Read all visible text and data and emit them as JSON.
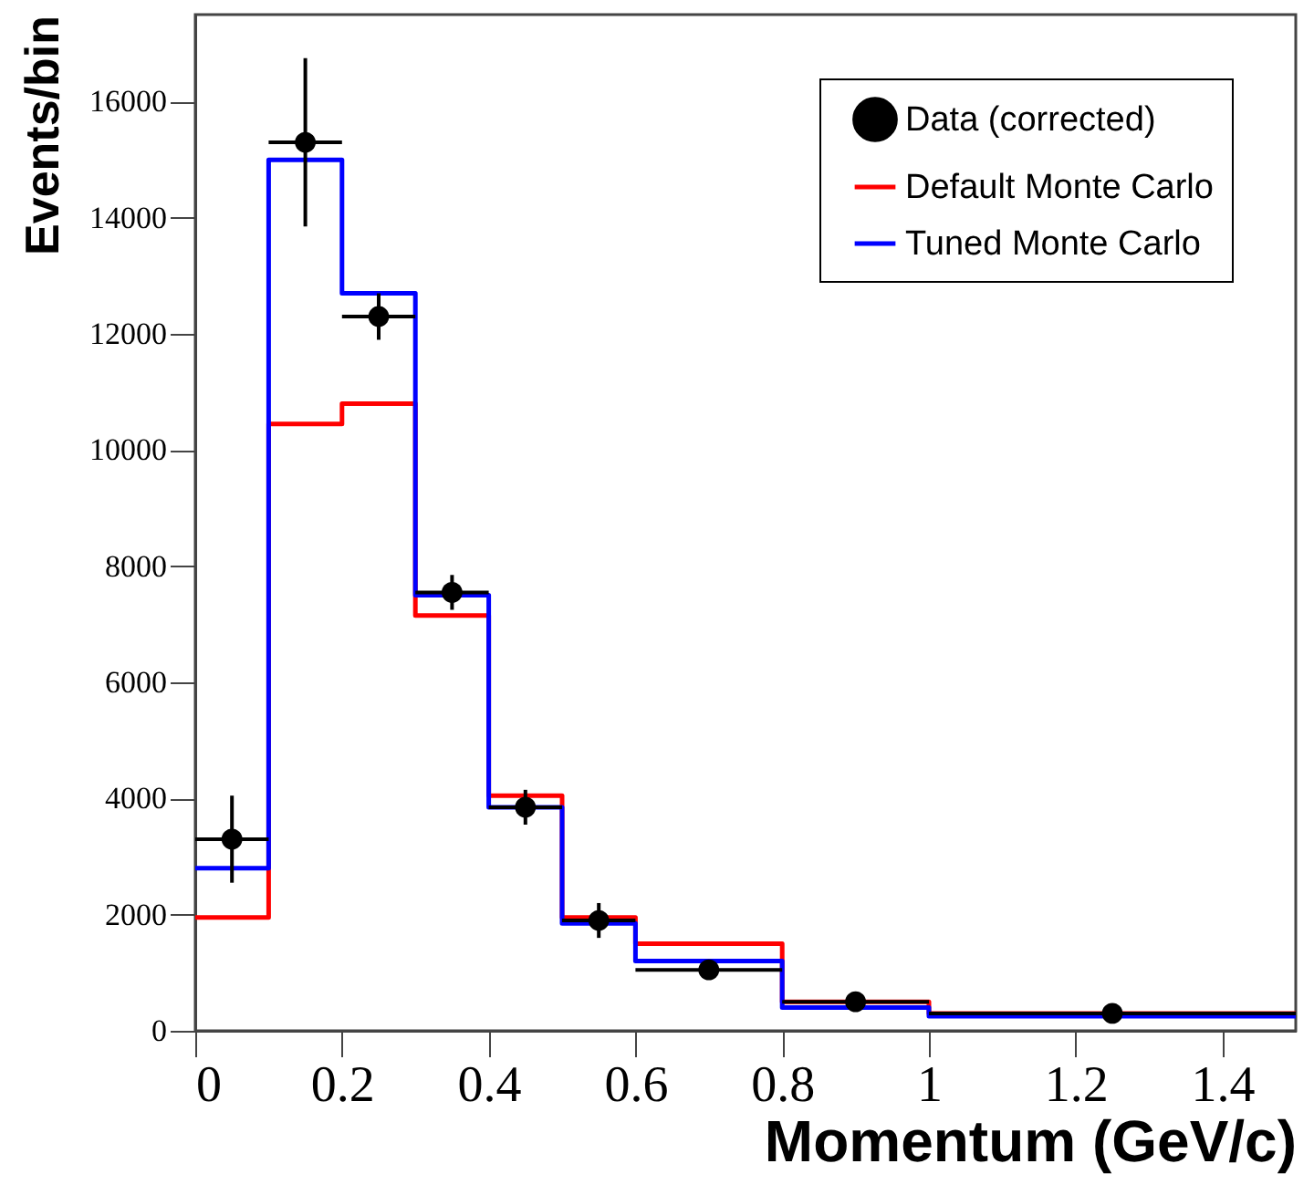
{
  "chart_data": {
    "type": "histogram",
    "xlabel": "Momentum (GeV/c)",
    "ylabel": "Events/bin",
    "bins": [
      0,
      0.1,
      0.2,
      0.3,
      0.4,
      0.5,
      0.6,
      0.8,
      1.0,
      1.5
    ],
    "series": [
      {
        "name": "Data (corrected)",
        "type": "scatter",
        "color": "#000000",
        "x": [
          0.05,
          0.15,
          0.25,
          0.35,
          0.45,
          0.55,
          0.7,
          0.9,
          1.25
        ],
        "values": [
          3300,
          15300,
          12300,
          7550,
          3850,
          1900,
          1050,
          500,
          300
        ],
        "errors": [
          750,
          1450,
          400,
          300,
          300,
          300,
          null,
          null,
          null
        ],
        "xerrors": [
          0.05,
          0.05,
          0.05,
          0.05,
          0.05,
          0.05,
          0.1,
          0.1,
          0.25
        ]
      },
      {
        "name": "Default Monte Carlo",
        "color": "#ff0000",
        "values": [
          1950,
          10450,
          10800,
          7150,
          4050,
          1950,
          1500,
          500,
          300
        ]
      },
      {
        "name": "Tuned Monte Carlo",
        "color": "#0000ff",
        "values": [
          2800,
          15000,
          12700,
          7500,
          3850,
          1850,
          1200,
          400,
          250
        ]
      }
    ],
    "marker": "circle",
    "xlim": [
      0,
      1.5
    ],
    "xticks": [
      0,
      0.2,
      0.4,
      0.6,
      0.8,
      1,
      1.2,
      1.4
    ],
    "ylim": [
      0,
      17500
    ],
    "yticks": [
      0,
      2000,
      4000,
      6000,
      8000,
      10000,
      12000,
      14000,
      16000
    ],
    "grid": false,
    "legend": "top right"
  }
}
